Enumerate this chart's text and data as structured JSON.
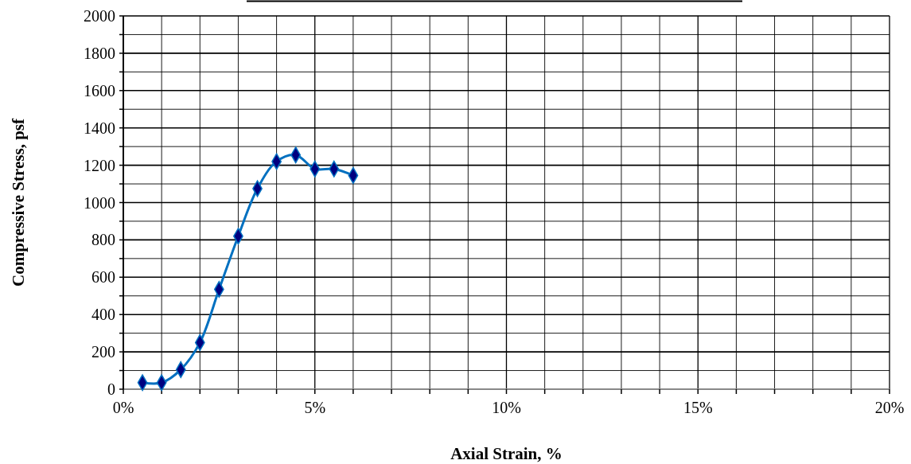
{
  "chart_data": {
    "type": "line",
    "xlabel": "Axial Strain, %",
    "ylabel": "Compressive Stress, psf",
    "x": [
      0.5,
      1,
      1.5,
      2,
      2.5,
      3,
      3.5,
      4,
      4.5,
      5,
      5.5,
      6
    ],
    "series": [
      {
        "color": "#0070c0",
        "values": [
          35,
          35,
          105,
          250,
          535,
          820,
          1075,
          1220,
          1255,
          1180,
          1180,
          1145
        ]
      }
    ],
    "marker": "diamond",
    "grid": true,
    "xlim": [
      0,
      20
    ],
    "xticks": [
      {
        "value": 0,
        "label": "0%"
      },
      {
        "value": 1,
        "label": null
      },
      {
        "value": 2,
        "label": null
      },
      {
        "value": 3,
        "label": null
      },
      {
        "value": 4,
        "label": null
      },
      {
        "value": 5,
        "label": "5%"
      },
      {
        "value": 6,
        "label": null
      },
      {
        "value": 7,
        "label": null
      },
      {
        "value": 8,
        "label": null
      },
      {
        "value": 9,
        "label": null
      },
      {
        "value": 10,
        "label": "10%"
      },
      {
        "value": 11,
        "label": null
      },
      {
        "value": 12,
        "label": null
      },
      {
        "value": 13,
        "label": null
      },
      {
        "value": 14,
        "label": null
      },
      {
        "value": 15,
        "label": "15%"
      },
      {
        "value": 16,
        "label": null
      },
      {
        "value": 17,
        "label": null
      },
      {
        "value": 18,
        "label": null
      },
      {
        "value": 19,
        "label": null
      },
      {
        "value": 20,
        "label": "20%"
      }
    ],
    "ylim": [
      0,
      2000
    ],
    "yticks": [
      0,
      {
        "value": 100,
        "label": null
      },
      200,
      {
        "value": 300,
        "label": null
      },
      400,
      {
        "value": 500,
        "label": null
      },
      600,
      {
        "value": 700,
        "label": null
      },
      800,
      {
        "value": 900,
        "label": null
      },
      1000,
      {
        "value": 1100,
        "label": null
      },
      1200,
      {
        "value": 1300,
        "label": null
      },
      1400,
      {
        "value": 1500,
        "label": null
      },
      1600,
      {
        "value": 1700,
        "label": null
      },
      1800,
      {
        "value": 1900,
        "label": null
      },
      2000
    ]
  }
}
